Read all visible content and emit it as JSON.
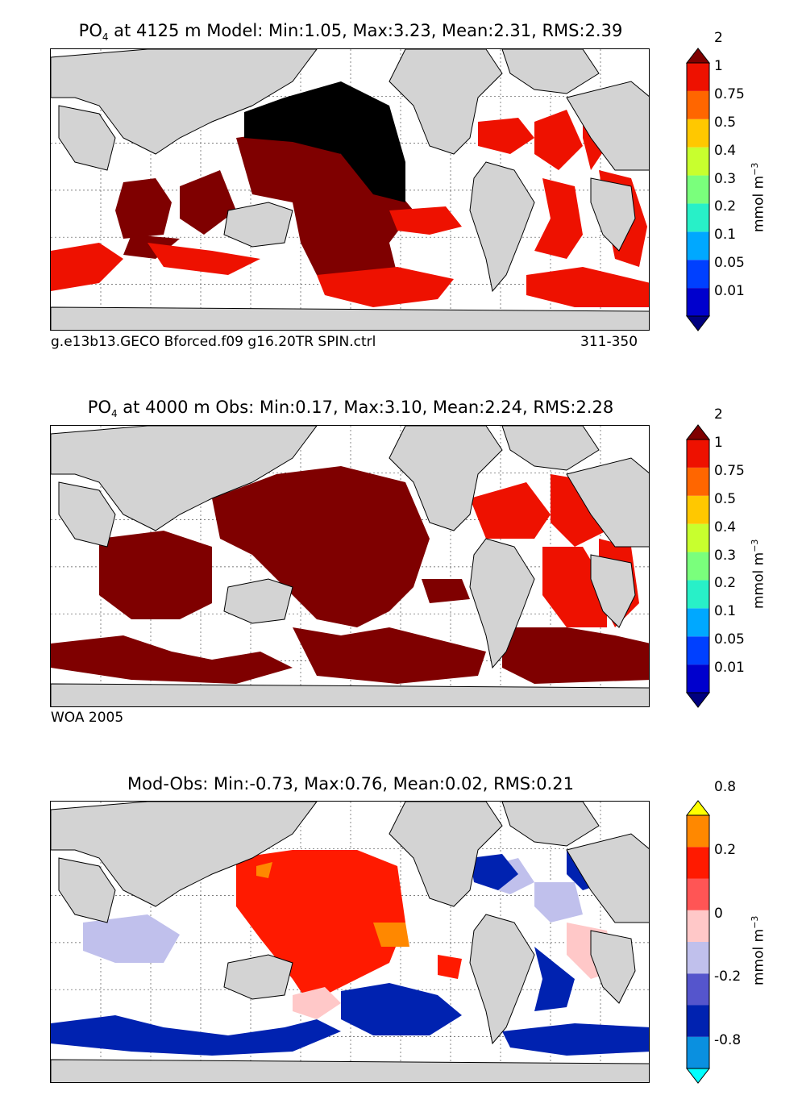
{
  "panels": [
    {
      "title_var": "PO",
      "title_sub": "4",
      "title_rest": " at 4125 m Model: Min:1.05, Max:3.23, Mean:2.31, RMS:2.39",
      "caption_left": "g.e13b13.GECO Bforced.f09 g16.20TR SPIN.ctrl",
      "caption_right": "311-350",
      "colorbar": {
        "ticks": [
          "0.01",
          "0.05",
          "0.1",
          "0.2",
          "0.3",
          "0.4",
          "0.5",
          "0.75",
          "1",
          "2"
        ],
        "colors": [
          "#00007f",
          "#0000cd",
          "#0040ff",
          "#00a8ff",
          "#28f0c8",
          "#7aff7c",
          "#c8ff2e",
          "#ffc800",
          "#ff6600",
          "#ee1100",
          "#7f0000"
        ],
        "unit_text": "mmol m",
        "unit_sup": "−3"
      }
    },
    {
      "title_var": "PO",
      "title_sub": "4",
      "title_rest": " at 4000 m Obs: Min:0.17, Max:3.10, Mean:2.24, RMS:2.28",
      "caption_left": "WOA 2005",
      "colorbar": {
        "ticks": [
          "0.01",
          "0.05",
          "0.1",
          "0.2",
          "0.3",
          "0.4",
          "0.5",
          "0.75",
          "1",
          "2"
        ],
        "colors": [
          "#00007f",
          "#0000cd",
          "#0040ff",
          "#00a8ff",
          "#28f0c8",
          "#7aff7c",
          "#c8ff2e",
          "#ffc800",
          "#ff6600",
          "#ee1100",
          "#7f0000"
        ],
        "unit_text": "mmol m",
        "unit_sup": "−3"
      }
    },
    {
      "title_full": "Mod-Obs: Min:-0.73, Max:0.76, Mean:0.02, RMS:0.21",
      "colorbar": {
        "ticks": [
          "-0.8",
          "-0.2",
          "0",
          "0.2",
          "0.8"
        ],
        "colors": [
          "#00ffff",
          "#0a90e0",
          "#0022b0",
          "#5555cc",
          "#c0c0ec",
          "#ffc8c8",
          "#ff5555",
          "#ff1a00",
          "#ff8800",
          "#ffff00"
        ],
        "unit_text": "mmol m",
        "unit_sup": "−3"
      }
    }
  ],
  "colors": {
    "land": "#d3d3d3",
    "ocean_nodata": "#ffffff",
    "model_top_color": "#000000",
    "dark_red": "#7f0000",
    "red": "#ee1100",
    "orange": "#ff6600",
    "diff_pos": "#ff1a00",
    "diff_neg": "#0022b0"
  }
}
